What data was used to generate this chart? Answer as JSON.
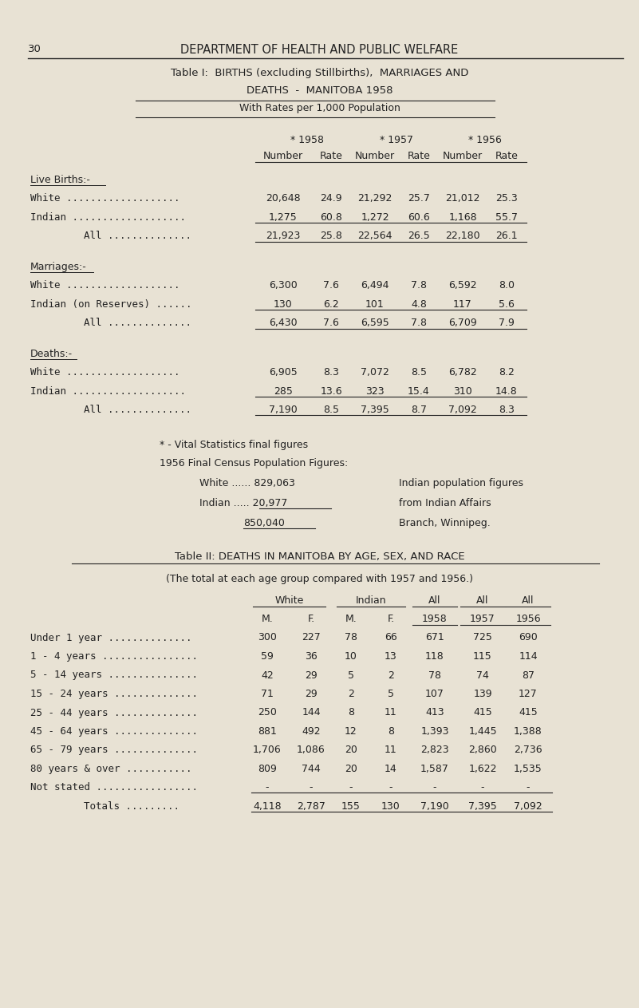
{
  "bg_color": "#e8e2d4",
  "text_color": "#222222",
  "page_num": "30",
  "header": "DEPARTMENT OF HEALTH AND PUBLIC WELFARE",
  "table1_title_line1": "Table I:  BIRTHS (excluding Stillbirths),  MARRIAGES AND",
  "table1_title_line2": "DEATHS  -  MANITOBA 1958",
  "table1_subtitle": "With Rates per 1,000 Population",
  "table1_col_headers": [
    "* 1958",
    "* 1957",
    "* 1956"
  ],
  "table1_subheaders": [
    "Number",
    "Rate",
    "Number",
    "Rate",
    "Number",
    "Rate"
  ],
  "table1_sections": [
    {
      "section_label": "Live Births:-",
      "underline_label": true,
      "rows": [
        {
          "label": "White ...................",
          "values": [
            "20,648",
            "24.9",
            "21,292",
            "25.7",
            "21,012",
            "25.3"
          ],
          "underline": false
        },
        {
          "label": "Indian ...................",
          "values": [
            "1,275",
            "60.8",
            "1,272",
            "60.6",
            "1,168",
            "55.7"
          ],
          "underline": true
        },
        {
          "label": "All ..............",
          "indent": true,
          "values": [
            "21,923",
            "25.8",
            "22,564",
            "26.5",
            "22,180",
            "26.1"
          ],
          "underline": true
        }
      ]
    },
    {
      "section_label": "Marriages:-",
      "underline_label": true,
      "rows": [
        {
          "label": "White ...................",
          "values": [
            "6,300",
            "7.6",
            "6,494",
            "7.8",
            "6,592",
            "8.0"
          ],
          "underline": false
        },
        {
          "label": "Indian (on Reserves) ......",
          "values": [
            "130",
            "6.2",
            "101",
            "4.8",
            "117",
            "5.6"
          ],
          "underline": true
        },
        {
          "label": "All ..............",
          "indent": true,
          "values": [
            "6,430",
            "7.6",
            "6,595",
            "7.8",
            "6,709",
            "7.9"
          ],
          "underline": true
        }
      ]
    },
    {
      "section_label": "Deaths:-",
      "underline_label": true,
      "rows": [
        {
          "label": "White ...................",
          "values": [
            "6,905",
            "8.3",
            "7,072",
            "8.5",
            "6,782",
            "8.2"
          ],
          "underline": false
        },
        {
          "label": "Indian ...................",
          "values": [
            "285",
            "13.6",
            "323",
            "15.4",
            "310",
            "14.8"
          ],
          "underline": true
        },
        {
          "label": "All ..............",
          "indent": true,
          "values": [
            "7,190",
            "8.5",
            "7,395",
            "8.7",
            "7,092",
            "8.3"
          ],
          "underline": true
        }
      ]
    }
  ],
  "footnote1": "* - Vital Statistics final figures",
  "footnote2": "1956 Final Census Population Figures:",
  "pop_white_label": "White ......",
  "pop_white_val": "829,063",
  "pop_indian_label": "Indian .....",
  "pop_indian_val": "20,977",
  "pop_total_val": "850,040",
  "pop_note1": "Indian population figures",
  "pop_note2": "from Indian Affairs",
  "pop_note3": "Branch, Winnipeg.",
  "table2_title": "Table II: DEATHS IN MANITOBA BY AGE, SEX, AND RACE",
  "table2_subtitle": "(The total at each age group compared with 1957 and 1956.)",
  "table2_rows": [
    {
      "label": "Under 1 year ..............",
      "wm": "300",
      "wf": "227",
      "im": "78",
      "if_": "66",
      "all58": "671",
      "all57": "725",
      "all56": "690"
    },
    {
      "label": "1 - 4 years ................",
      "wm": "59",
      "wf": "36",
      "im": "10",
      "if_": "13",
      "all58": "118",
      "all57": "115",
      "all56": "114"
    },
    {
      "label": "5 - 14 years ...............",
      "wm": "42",
      "wf": "29",
      "im": "5",
      "if_": "2",
      "all58": "78",
      "all57": "74",
      "all56": "87"
    },
    {
      "label": "15 - 24 years ..............",
      "wm": "71",
      "wf": "29",
      "im": "2",
      "if_": "5",
      "all58": "107",
      "all57": "139",
      "all56": "127"
    },
    {
      "label": "25 - 44 years ..............",
      "wm": "250",
      "wf": "144",
      "im": "8",
      "if_": "11",
      "all58": "413",
      "all57": "415",
      "all56": "415"
    },
    {
      "label": "45 - 64 years ..............",
      "wm": "881",
      "wf": "492",
      "im": "12",
      "if_": "8",
      "all58": "1,393",
      "all57": "1,445",
      "all56": "1,388"
    },
    {
      "label": "65 - 79 years ..............",
      "wm": "1,706",
      "wf": "1,086",
      "im": "20",
      "if_": "11",
      "all58": "2,823",
      "all57": "2,860",
      "all56": "2,736"
    },
    {
      "label": "80 years & over ...........",
      "wm": "809",
      "wf": "744",
      "im": "20",
      "if_": "14",
      "all58": "1,587",
      "all57": "1,622",
      "all56": "1,535"
    },
    {
      "label": "Not stated .................",
      "wm": "-",
      "wf": "-",
      "im": "-",
      "if_": "-",
      "all58": "-",
      "all57": "-",
      "all56": "-",
      "underline": true
    },
    {
      "label": "Totals .........",
      "indent": true,
      "wm": "4,118",
      "wf": "2,787",
      "im": "155",
      "if_": "130",
      "all58": "7,190",
      "all57": "7,395",
      "all56": "7,092",
      "underline": true
    }
  ]
}
